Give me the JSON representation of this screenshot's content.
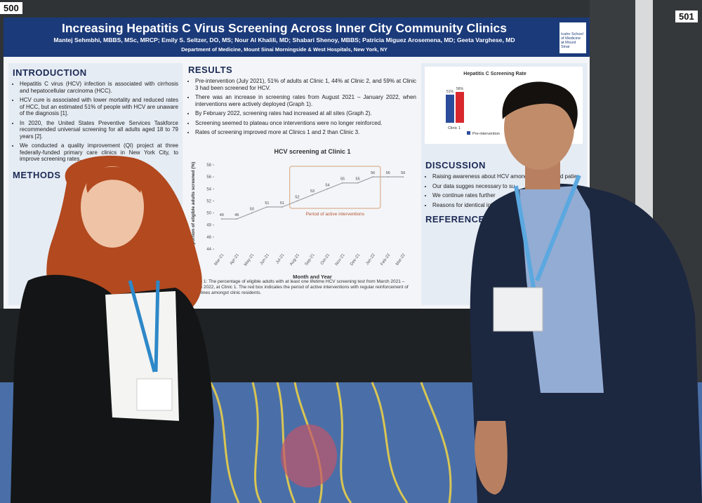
{
  "labels": {
    "left_board": "500",
    "right_board": "501"
  },
  "poster": {
    "title": "Increasing Hepatitis C Virus Screening Across Inner City Community Clinics",
    "authors": "Mantej Sehmbhi, MBBS, MSc, MRCP; Emily S. Seltzer, DO, MS; Nour Al Khalili, MD; Shabari Shenoy, MBBS; Patricia Miguez Arosemena, MD; Geeta Varghese, MD",
    "affiliation": "Department of Medicine, Mount Sinai Morningside & West Hospitals, New York, NY",
    "logo": "Icahn School of Medicine at Mount Sinai",
    "introduction": {
      "heading": "INTRODUCTION",
      "bullets": [
        "Hepatitis C virus (HCV) infection is associated with cirrhosis and hepatocellular carcinoma (HCC).",
        "HCV cure is associated with lower mortality and reduced rates of HCC, but an estimated 51% of people with HCV are unaware of the diagnosis [1].",
        "In 2020, the United States Preventive Services Taskforce recommended universal screening for all adults aged 18 to 79 years [2].",
        "We conducted a quality improvement (QI) project at three federally-funded primary care clinics in New York City, to improve screening rates."
      ]
    },
    "methods": {
      "heading": "METHODS"
    },
    "results": {
      "heading": "RESULTS",
      "bullets": [
        "Pre-intervention (July 2021), 51% of adults at Clinic 1, 44% at Clinic 2, and 59% at Clinic 3 had been screened for HCV.",
        "There was an increase in screening rates from August 2021 – January 2022, when interventions were actively deployed (Graph 1).",
        "By February 2022, screening rates had increased at all sites (Graph 2).",
        "Screening seemed to plateau once interventions were no longer reinforced.",
        "Rates of screening improved more at Clinics 1 and 2 than Clinic 3."
      ]
    },
    "graph1": {
      "type": "line",
      "title": "HCV screening at Clinic 1",
      "y_label": "Proportion of eligible adults screened (%)",
      "x_label": "Month and Year",
      "categories": [
        "Mar-21",
        "Apr-21",
        "May-21",
        "Jun-21",
        "Jul-21",
        "Aug-21",
        "Sep-21",
        "Oct-21",
        "Nov-21",
        "Dec-21",
        "Jan-22",
        "Feb-22",
        "Mar-22"
      ],
      "values": [
        49,
        49,
        50,
        51,
        51,
        52,
        53,
        54,
        55,
        55,
        56,
        56,
        56
      ],
      "color": "#a0a4aa",
      "ylim": [
        44,
        58
      ],
      "yticks": [
        44,
        46,
        48,
        50,
        52,
        54,
        56,
        58
      ],
      "annotation": "Period of active interventions",
      "caption": "Graph 1: The percentage of eligible adults with at least one lifetime HCV screening test from March 2021 – March 2022, at Clinic 1. The red box indicates the period of active interventions with regular reinforcement of guidelines amongst clinic residents."
    },
    "graph2": {
      "type": "bar",
      "title": "Hepatitis C Screening Rate",
      "categories": [
        "Clinic 1"
      ],
      "ylim": [
        0,
        70
      ],
      "series": [
        {
          "name": "Pre-intervention",
          "color": "#2b4c9b",
          "values": [
            51
          ],
          "value_labels": [
            "51%"
          ]
        },
        {
          "color": "#d8282e",
          "values": [
            56
          ],
          "value_labels": [
            "56%"
          ]
        }
      ]
    },
    "discussion": {
      "heading": "DISCUSSION",
      "bullets": [
        "Raising awareness about HCV among providers and patie",
        "Our data sugges necessary to su",
        "We continue rates further",
        "Reasons for identical inte"
      ]
    },
    "references": {
      "heading": "REFERENCES"
    }
  }
}
